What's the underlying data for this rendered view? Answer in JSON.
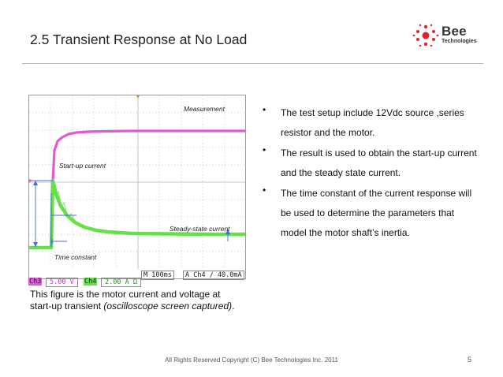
{
  "slide": {
    "title": "2.5 Transient Response at No Load",
    "logo_word": "Bee",
    "logo_sub": "Technologies",
    "accent_color": "#e2232a"
  },
  "scope": {
    "label_measurement": "Measurement",
    "label_startup": "Start-up current",
    "label_steady": "Steady-state current",
    "label_time_constant": "Time constant",
    "status": {
      "ch3": "Ch3",
      "ch3_scale": "5.00 V",
      "ch4": "Ch4",
      "ch4_scale": "2.00 A Ω",
      "time_div": "M 100ms",
      "trigger": "A  Ch4  ∕  40.0mA"
    },
    "colors": {
      "voltage_trace": "#e05ad6",
      "current_trace": "#66e04a",
      "annotation": "#3a6fd8"
    }
  },
  "caption": {
    "line1": "This figure is the motor current and voltage at",
    "line2_plain": "start-up transient ",
    "line2_italic": "(oscilloscope screen captured)",
    "line2_end": "."
  },
  "bullets": [
    {
      "dot": "•",
      "text": "The test setup include 12Vdc source ,series resistor and the motor."
    },
    {
      "dot": "•",
      "text": "The result is used to obtain the start-up current and the steady state current."
    },
    {
      "dot": "•",
      "text": "The time constant of the current response will be used to determine the parameters that model the motor shaft’s inertia."
    }
  ],
  "footer": {
    "copyright": "All Rights Reserved Copyright (C) Bee Technologies Inc. 2011",
    "page": "5"
  }
}
